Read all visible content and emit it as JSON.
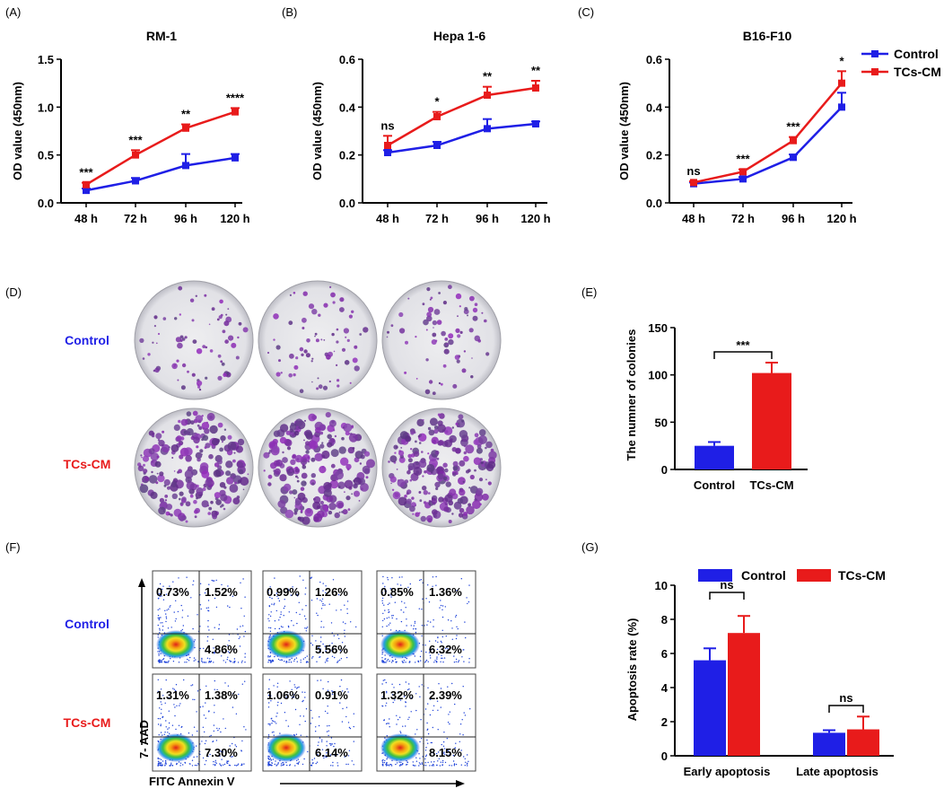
{
  "chart_data": [
    {
      "id": "A",
      "panel_label": "(A)",
      "type": "line",
      "title": "RM-1",
      "ylabel": "OD value (450nm)",
      "categories": [
        "48 h",
        "72 h",
        "96 h",
        "120 h"
      ],
      "ylim": [
        0,
        1.5
      ],
      "yticks": [
        "0.0",
        "0.5",
        "1.0",
        "1.5"
      ],
      "ytick_values": [
        0,
        0.5,
        1.0,
        1.5
      ],
      "series": [
        {
          "name": "Control",
          "color": "#1f1fe6",
          "values": [
            0.13,
            0.23,
            0.39,
            0.47
          ],
          "err": [
            0.02,
            0.03,
            0.12,
            0.04
          ]
        },
        {
          "name": "TCs-CM",
          "color": "#e81b1b",
          "values": [
            0.19,
            0.5,
            0.78,
            0.95
          ],
          "err": [
            0.02,
            0.05,
            0.04,
            0.04
          ]
        }
      ],
      "annotations": [
        "***",
        "***",
        "**",
        "****"
      ]
    },
    {
      "id": "B",
      "panel_label": "(B)",
      "type": "line",
      "title": "Hepa 1-6",
      "ylabel": "OD value (450nm)",
      "categories": [
        "48 h",
        "72 h",
        "96 h",
        "120 h"
      ],
      "ylim": [
        0,
        0.6
      ],
      "yticks": [
        "0.0",
        "0.2",
        "0.4",
        "0.6"
      ],
      "ytick_values": [
        0,
        0.2,
        0.4,
        0.6
      ],
      "series": [
        {
          "name": "Control",
          "color": "#1f1fe6",
          "values": [
            0.21,
            0.24,
            0.31,
            0.33
          ],
          "err": [
            0.01,
            0.015,
            0.04,
            0.01
          ]
        },
        {
          "name": "TCs-CM",
          "color": "#e81b1b",
          "values": [
            0.24,
            0.36,
            0.45,
            0.48
          ],
          "err": [
            0.04,
            0.02,
            0.035,
            0.03
          ]
        }
      ],
      "annotations": [
        "ns",
        "*",
        "**",
        "**"
      ]
    },
    {
      "id": "C",
      "panel_label": "(C)",
      "type": "line",
      "title": "B16-F10",
      "ylabel": "OD value (450nm)",
      "categories": [
        "48 h",
        "72 h",
        "96 h",
        "120 h"
      ],
      "ylim": [
        0,
        0.6
      ],
      "yticks": [
        "0.0",
        "0.2",
        "0.4",
        "0.6"
      ],
      "ytick_values": [
        0,
        0.2,
        0.4,
        0.6
      ],
      "series": [
        {
          "name": "Control",
          "color": "#1f1fe6",
          "values": [
            0.08,
            0.1,
            0.19,
            0.4
          ],
          "err": [
            0.005,
            0.008,
            0.012,
            0.06
          ]
        },
        {
          "name": "TCs-CM",
          "color": "#e81b1b",
          "values": [
            0.085,
            0.13,
            0.26,
            0.5
          ],
          "err": [
            0.005,
            0.01,
            0.015,
            0.05
          ]
        }
      ],
      "annotations": [
        "ns",
        "***",
        "***",
        "*"
      ],
      "legend": [
        "Control",
        "TCs-CM"
      ]
    },
    {
      "id": "E",
      "panel_label": "(E)",
      "type": "bar",
      "ylabel": "The numner of colonies",
      "categories": [
        "Control",
        "TCs-CM"
      ],
      "ylim": [
        0,
        150
      ],
      "yticks": [
        "0",
        "50",
        "100",
        "150"
      ],
      "ytick_values": [
        0,
        50,
        100,
        150
      ],
      "values": [
        25,
        102
      ],
      "err": [
        4,
        11
      ],
      "colors": [
        "#1f1fe6",
        "#e81b1b"
      ],
      "annotations": [
        "***"
      ]
    },
    {
      "id": "G",
      "panel_label": "(G)",
      "type": "bar",
      "ylabel": "Apoptosis rate (%)",
      "categories": [
        "Early apoptosis",
        "Late apoptosis"
      ],
      "ylim": [
        0,
        10
      ],
      "yticks": [
        "0",
        "2",
        "4",
        "6",
        "8",
        "10"
      ],
      "ytick_values": [
        0,
        2,
        4,
        6,
        8,
        10
      ],
      "series": [
        {
          "name": "Control",
          "color": "#1f1fe6",
          "values": [
            5.6,
            1.35
          ],
          "err": [
            0.7,
            0.15
          ]
        },
        {
          "name": "TCs-CM",
          "color": "#e81b1b",
          "values": [
            7.2,
            1.55
          ],
          "err": [
            1.0,
            0.75
          ]
        }
      ],
      "annotations": [
        "ns",
        "ns"
      ],
      "legend": [
        "Control",
        "TCs-CM"
      ]
    }
  ],
  "panel_d": {
    "panel_label": "(D)",
    "rows": [
      {
        "label": "Control",
        "color": "#1f1fe6"
      },
      {
        "label": "TCs-CM",
        "color": "#e81b1b"
      }
    ]
  },
  "panel_f": {
    "panel_label": "(F)",
    "rows": [
      {
        "label": "Control",
        "color": "#1f1fe6",
        "plots": [
          {
            "ul": "0.73%",
            "ur": "1.52%",
            "lr": "4.86%"
          },
          {
            "ul": "0.99%",
            "ur": "1.26%",
            "lr": "5.56%"
          },
          {
            "ul": "0.85%",
            "ur": "1.36%",
            "lr": "6.32%"
          }
        ]
      },
      {
        "label": "TCs-CM",
        "color": "#e81b1b",
        "plots": [
          {
            "ul": "1.31%",
            "ur": "1.38%",
            "lr": "7.30%"
          },
          {
            "ul": "1.06%",
            "ur": "0.91%",
            "lr": "6.14%"
          },
          {
            "ul": "1.32%",
            "ur": "2.39%",
            "lr": "8.15%"
          }
        ]
      }
    ],
    "ylabel": "7- AAD",
    "xlabel": "FITC Annexin V"
  }
}
